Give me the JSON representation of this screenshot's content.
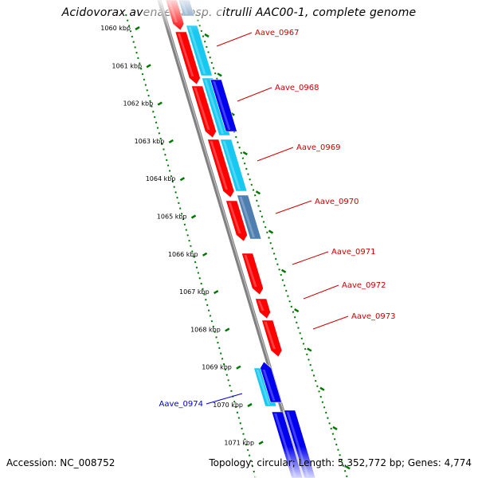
{
  "title": "Acidovorax avenae subsp. citrulli AAC00-1, complete genome",
  "footer": {
    "accession": "Accession: NC_008752",
    "topology": "Topology: circular; Length: 5,352,772 bp; Genes: 4,774"
  },
  "colors": {
    "reverse_strand": "#ff0000",
    "forward_strand": "#0000ee",
    "cyan_feature": "#17c8f0",
    "steel_feature": "#4e7fb0",
    "backbone": "#808080",
    "ticks": "#007700"
  },
  "kbp_ticks": [
    "1060 kbp",
    "1061 kbp",
    "1062 kbp",
    "1063 kbp",
    "1064 kbp",
    "1065 kbp",
    "1066 kbp",
    "1067 kbp",
    "1068 kbp",
    "1069 kbp",
    "1070 kbp",
    "1071 kbp"
  ],
  "genes": [
    {
      "label": "Aave_0967",
      "color": "#cc0000"
    },
    {
      "label": "Aave_0968",
      "color": "#cc0000"
    },
    {
      "label": "Aave_0969",
      "color": "#cc0000"
    },
    {
      "label": "Aave_0970",
      "color": "#cc0000"
    },
    {
      "label": "Aave_0971",
      "color": "#cc0000"
    },
    {
      "label": "Aave_0972",
      "color": "#cc0000"
    },
    {
      "label": "Aave_0973",
      "color": "#cc0000"
    },
    {
      "label": "Aave_0974",
      "color": "#0000cc"
    }
  ]
}
